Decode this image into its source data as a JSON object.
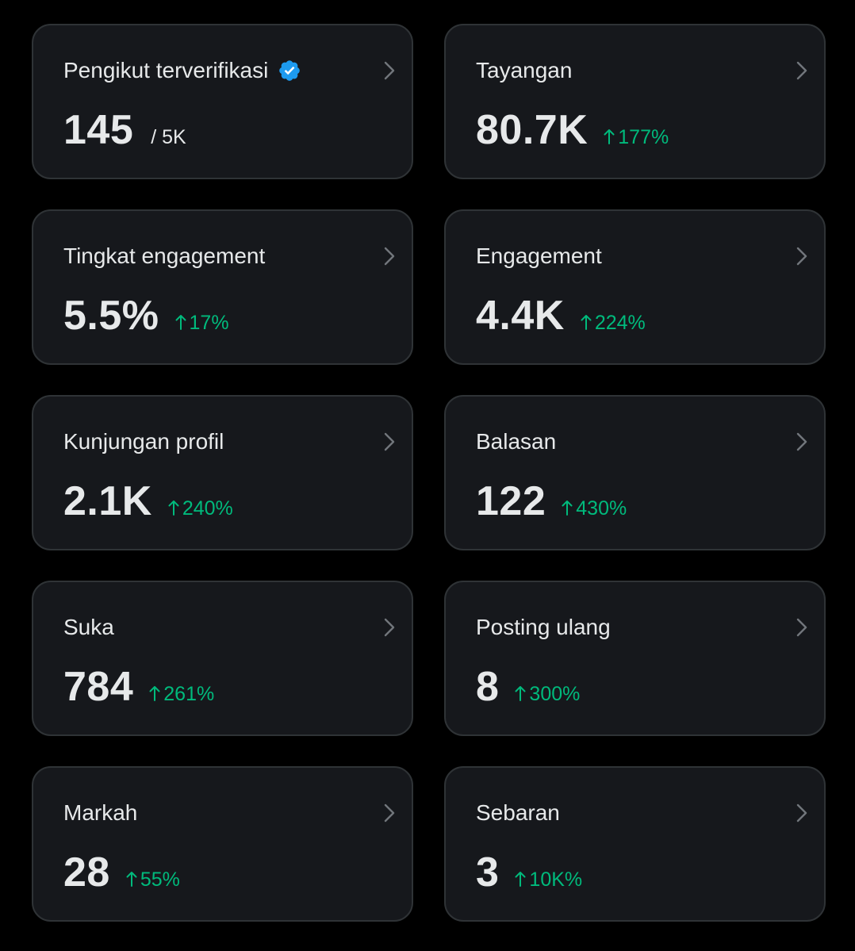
{
  "colors": {
    "background": "#000000",
    "card": "#16181c",
    "card_border": "#2f3336",
    "text": "#e7e9ea",
    "positive": "#00ba7c",
    "verified": "#1d9bf0",
    "chevron": "#71767b"
  },
  "cards": [
    {
      "title": "Pengikut terverifikasi",
      "value": "145",
      "sub": "/ 5K",
      "change": "",
      "icon": "verified-badge-icon"
    },
    {
      "title": "Tayangan",
      "value": "80.7K",
      "sub": "",
      "change": "177%"
    },
    {
      "title": "Tingkat engagement",
      "value": "5.5%",
      "sub": "",
      "change": "17%"
    },
    {
      "title": "Engagement",
      "value": "4.4K",
      "sub": "",
      "change": "224%"
    },
    {
      "title": "Kunjungan profil",
      "value": "2.1K",
      "sub": "",
      "change": "240%"
    },
    {
      "title": "Balasan",
      "value": "122",
      "sub": "",
      "change": "430%"
    },
    {
      "title": "Suka",
      "value": "784",
      "sub": "",
      "change": "261%"
    },
    {
      "title": "Posting ulang",
      "value": "8",
      "sub": "",
      "change": "300%"
    },
    {
      "title": "Markah",
      "value": "28",
      "sub": "",
      "change": "55%"
    },
    {
      "title": "Sebaran",
      "value": "3",
      "sub": "",
      "change": "10K%"
    }
  ]
}
